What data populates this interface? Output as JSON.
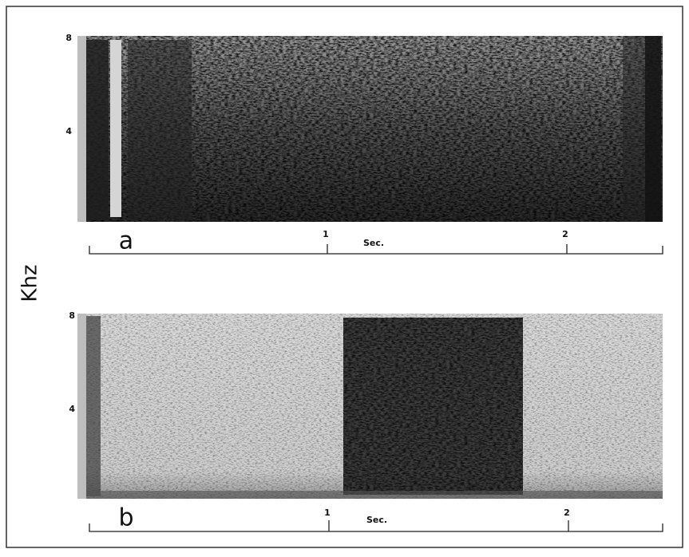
{
  "figure": {
    "y_axis_label": "Khz",
    "panels": [
      {
        "label": "a",
        "y_ticks": [
          "8",
          "4"
        ],
        "x_ticks": [
          "1",
          "2"
        ],
        "x_unit": "Sec."
      },
      {
        "label": "b",
        "y_ticks": [
          "8",
          "4"
        ],
        "x_ticks": [
          "1",
          "2"
        ],
        "x_unit": "Sec."
      }
    ]
  }
}
